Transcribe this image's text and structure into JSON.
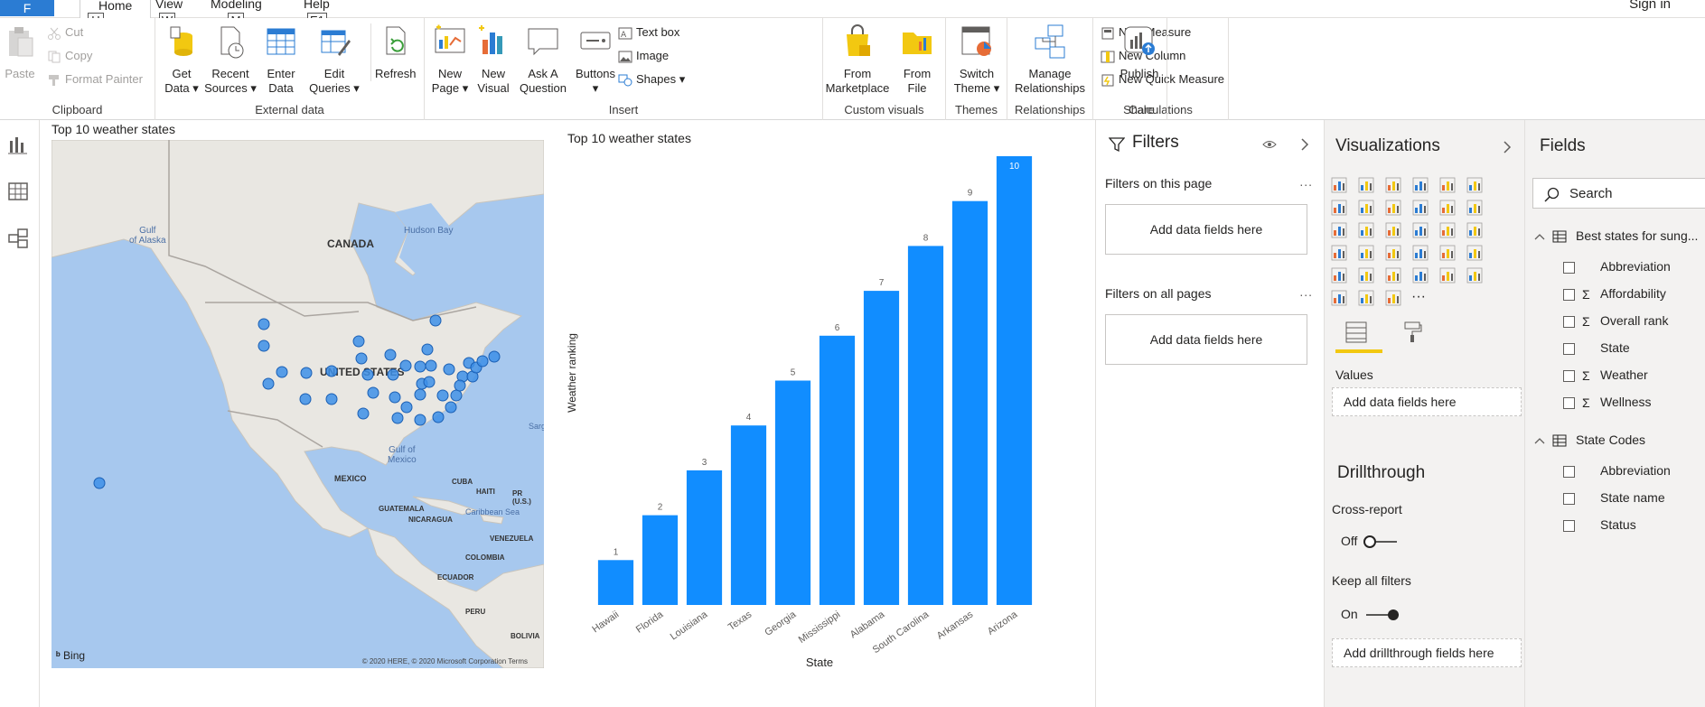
{
  "tabs": {
    "file": "F",
    "home": "Home",
    "view": "View",
    "modeling": "Modeling",
    "help": "Help",
    "keytips": [
      "H",
      "W",
      "M",
      "E1"
    ],
    "sign_in": "Sign in"
  },
  "ribbon": {
    "clipboard": {
      "label": "Clipboard",
      "paste": "Paste",
      "cut": "Cut",
      "copy": "Copy",
      "format_painter": "Format Painter"
    },
    "external_data": {
      "label": "External data",
      "get_data": [
        "Get",
        "Data"
      ],
      "recent_sources": [
        "Recent",
        "Sources"
      ],
      "enter_data": [
        "Enter",
        "Data"
      ],
      "edit_queries": [
        "Edit",
        "Queries"
      ],
      "refresh": "Refresh"
    },
    "insert": {
      "label": "Insert",
      "new_page": [
        "New",
        "Page"
      ],
      "new_visual": [
        "New",
        "Visual"
      ],
      "ask_question": [
        "Ask A",
        "Question"
      ],
      "buttons": "Buttons",
      "text_box": "Text box",
      "image": "Image",
      "shapes": "Shapes"
    },
    "custom_visuals": {
      "label": "Custom visuals",
      "from_marketplace": [
        "From",
        "Marketplace"
      ],
      "from_file": [
        "From",
        "File"
      ]
    },
    "themes": {
      "label": "Themes",
      "switch_theme": [
        "Switch",
        "Theme"
      ]
    },
    "relationships": {
      "label": "Relationships",
      "manage_relationships": [
        "Manage",
        "Relationships"
      ]
    },
    "calculations": {
      "label": "Calculations",
      "new_measure": "New Measure",
      "new_column": "New Column",
      "new_quick_measure": "New Quick Measure"
    },
    "share": {
      "label": "Share",
      "publish": "Publish"
    }
  },
  "map": {
    "title": "Top 10 weather states",
    "labels": {
      "canada": "CANADA",
      "united_states": "UNITED STATES",
      "mexico": "MEXICO",
      "gulf_of_alaska": [
        "Gulf",
        "of Alaska"
      ],
      "hudson_bay": "Hudson Bay",
      "gulf_of_mexico": [
        "Gulf of",
        "Mexico"
      ],
      "cuba": "CUBA",
      "haiti": "HAITI",
      "pr": [
        "PR",
        "(U.S.)"
      ],
      "guatemala": "GUATEMALA",
      "nicaragua": "NICARAGUA",
      "caribbean_sea": "Caribbean Sea",
      "venezuela": "VENEZUELA",
      "colombia": "COLOMBIA",
      "ecuador": "ECUADOR",
      "peru": "PERU",
      "bolivia": "BOLIVIA",
      "sargasso": "Sarg"
    },
    "bing": "Bing",
    "copyright": "© 2020 HERE, © 2020 Microsoft Corporation Terms",
    "marker_color": "#3d8fe8"
  },
  "chart_data": {
    "type": "bar",
    "title": "Top 10 weather states",
    "xlabel": "State",
    "ylabel": "Weather ranking",
    "categories": [
      "Hawaii",
      "Florida",
      "Louisiana",
      "Texas",
      "Georgia",
      "Mississippi",
      "Alabama",
      "South Carolina",
      "Arkansas",
      "Arizona"
    ],
    "values": [
      1,
      2,
      3,
      4,
      5,
      6,
      7,
      8,
      9,
      10
    ],
    "ylim": [
      0,
      10
    ],
    "grid": false,
    "color": "#118dff"
  },
  "filters": {
    "title": "Filters",
    "on_this_page": "Filters on this page",
    "on_all_pages": "Filters on all pages",
    "add_fields": "Add data fields here",
    "ellipsis": "..."
  },
  "visualizations": {
    "title": "Visualizations",
    "more": "···",
    "values_label": "Values",
    "add_data_fields": "Add data fields here",
    "drillthrough": "Drillthrough",
    "cross_report": "Cross-report",
    "cross_report_state": "Off",
    "keep_all_filters": "Keep all filters",
    "keep_all_filters_state": "On",
    "add_drillthrough": "Add drillthrough fields here",
    "accent": "#f2c811"
  },
  "fields": {
    "title": "Fields",
    "search_placeholder": "Search",
    "tables": [
      {
        "name": "Best states for sung...",
        "fields": [
          {
            "name": "Abbreviation",
            "sigma": false
          },
          {
            "name": "Affordability",
            "sigma": true
          },
          {
            "name": "Overall rank",
            "sigma": true
          },
          {
            "name": "State",
            "sigma": false
          },
          {
            "name": "Weather",
            "sigma": true
          },
          {
            "name": "Wellness",
            "sigma": true
          }
        ]
      },
      {
        "name": "State Codes",
        "fields": [
          {
            "name": "Abbreviation",
            "sigma": false
          },
          {
            "name": "State name",
            "sigma": false
          },
          {
            "name": "Status",
            "sigma": false
          }
        ]
      }
    ]
  }
}
